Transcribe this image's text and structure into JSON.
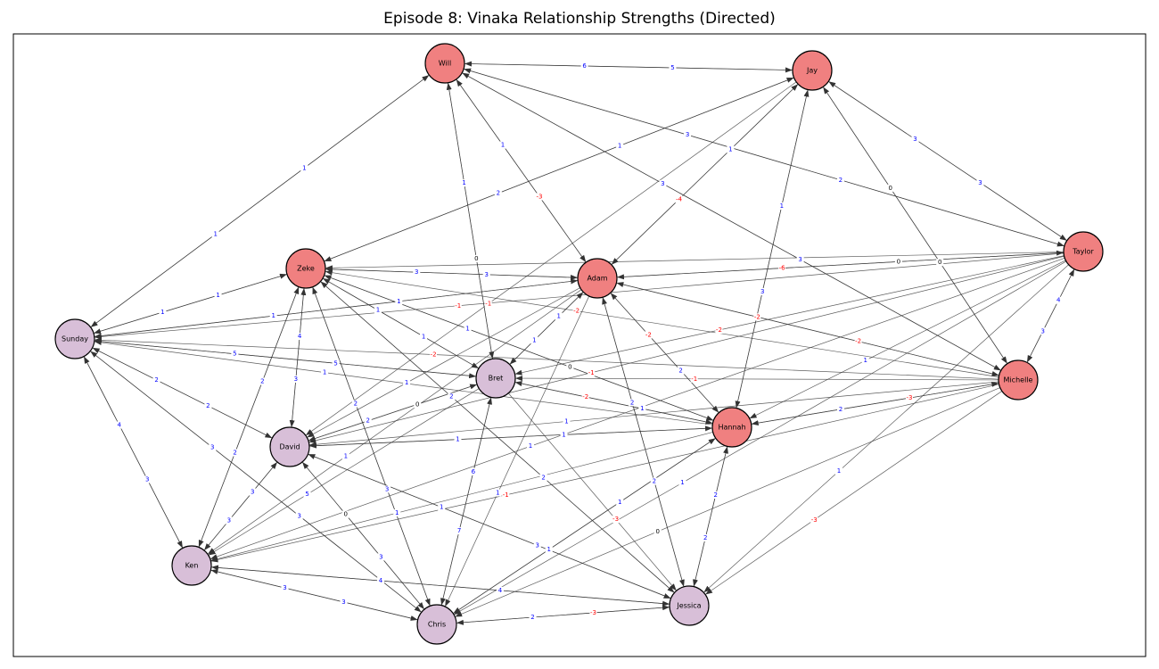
{
  "title": "Episode 8: Vinaka Relationship Strengths (Directed)",
  "colors": {
    "red_node": "#f08080",
    "purple_node": "#d8bfd8",
    "positive_label": "#0000ff",
    "negative_label": "#ff0000",
    "zero_label": "#000000",
    "edge": "#333333"
  },
  "nodes": [
    {
      "id": "Will",
      "label": "Will",
      "group": "red"
    },
    {
      "id": "Jay",
      "label": "Jay",
      "group": "red"
    },
    {
      "id": "Zeke",
      "label": "Zeke",
      "group": "red"
    },
    {
      "id": "Adam",
      "label": "Adam",
      "group": "red"
    },
    {
      "id": "Taylor",
      "label": "Taylor",
      "group": "red"
    },
    {
      "id": "Sunday",
      "label": "Sunday",
      "group": "purple"
    },
    {
      "id": "Bret",
      "label": "Bret",
      "group": "purple"
    },
    {
      "id": "Michelle",
      "label": "Michelle",
      "group": "red"
    },
    {
      "id": "Hannah",
      "label": "Hannah",
      "group": "red"
    },
    {
      "id": "David",
      "label": "David",
      "group": "purple"
    },
    {
      "id": "Ken",
      "label": "Ken",
      "group": "purple"
    },
    {
      "id": "Jessica",
      "label": "Jessica",
      "group": "purple"
    },
    {
      "id": "Chris",
      "label": "Chris",
      "group": "purple"
    }
  ],
  "edges": [
    {
      "source": "Will",
      "target": "Jay",
      "weight": "5"
    },
    {
      "source": "Jay",
      "target": "Will",
      "weight": "6"
    },
    {
      "source": "Will",
      "target": "Sunday",
      "weight": "1"
    },
    {
      "source": "Sunday",
      "target": "Will",
      "weight": "1"
    },
    {
      "source": "Will",
      "target": "Adam",
      "weight": "-3"
    },
    {
      "source": "Adam",
      "target": "Will",
      "weight": "1"
    },
    {
      "source": "Will",
      "target": "Bret",
      "weight": "0"
    },
    {
      "source": "Bret",
      "target": "Will",
      "weight": "1"
    },
    {
      "source": "Will",
      "target": "Taylor",
      "weight": "2"
    },
    {
      "source": "Taylor",
      "target": "Will",
      "weight": "3"
    },
    {
      "source": "Will",
      "target": "Michelle",
      "weight": "3"
    },
    {
      "source": "Michelle",
      "target": "Will",
      "weight": "3"
    },
    {
      "source": "Jay",
      "target": "Taylor",
      "weight": "3"
    },
    {
      "source": "Taylor",
      "target": "Jay",
      "weight": "3"
    },
    {
      "source": "Jay",
      "target": "Zeke",
      "weight": "2"
    },
    {
      "source": "Zeke",
      "target": "Jay",
      "weight": "1"
    },
    {
      "source": "Jay",
      "target": "Adam",
      "weight": "-4"
    },
    {
      "source": "Adam",
      "target": "Jay",
      "weight": "1"
    },
    {
      "source": "Jay",
      "target": "Hannah",
      "weight": "3"
    },
    {
      "source": "Hannah",
      "target": "Jay",
      "weight": "1"
    },
    {
      "source": "Jay",
      "target": "Michelle",
      "weight": "0"
    },
    {
      "source": "Michelle",
      "target": "Jay",
      "weight": "0"
    },
    {
      "source": "Jay",
      "target": "David",
      "weight": "-1"
    },
    {
      "source": "Zeke",
      "target": "Adam",
      "weight": "3"
    },
    {
      "source": "Adam",
      "target": "Zeke",
      "weight": "3"
    },
    {
      "source": "Zeke",
      "target": "Sunday",
      "weight": "1"
    },
    {
      "source": "Sunday",
      "target": "Zeke",
      "weight": "1"
    },
    {
      "source": "Zeke",
      "target": "David",
      "weight": "3"
    },
    {
      "source": "David",
      "target": "Zeke",
      "weight": "4"
    },
    {
      "source": "Zeke",
      "target": "Bret",
      "weight": "1"
    },
    {
      "source": "Bret",
      "target": "Zeke",
      "weight": "1"
    },
    {
      "source": "Zeke",
      "target": "Hannah",
      "weight": "0"
    },
    {
      "source": "Hannah",
      "target": "Zeke",
      "weight": "1"
    },
    {
      "source": "Zeke",
      "target": "Ken",
      "weight": "2"
    },
    {
      "source": "Ken",
      "target": "Zeke",
      "weight": "2"
    },
    {
      "source": "Zeke",
      "target": "Chris",
      "weight": "3"
    },
    {
      "source": "Chris",
      "target": "Zeke",
      "weight": "2"
    },
    {
      "source": "Zeke",
      "target": "Jessica",
      "weight": "2"
    },
    {
      "source": "Taylor",
      "target": "Zeke",
      "weight": "-3"
    },
    {
      "source": "Michelle",
      "target": "Zeke",
      "weight": "-2"
    },
    {
      "source": "Adam",
      "target": "Taylor",
      "weight": "0"
    },
    {
      "source": "Taylor",
      "target": "Adam",
      "weight": "-6"
    },
    {
      "source": "Adam",
      "target": "Sunday",
      "weight": "1"
    },
    {
      "source": "Sunday",
      "target": "Adam",
      "weight": "1"
    },
    {
      "source": "Adam",
      "target": "Bret",
      "weight": "1"
    },
    {
      "source": "Bret",
      "target": "Adam",
      "weight": "1"
    },
    {
      "source": "Adam",
      "target": "Hannah",
      "weight": "2"
    },
    {
      "source": "Hannah",
      "target": "Adam",
      "weight": "-2"
    },
    {
      "source": "Adam",
      "target": "Michelle",
      "weight": "-2"
    },
    {
      "source": "Michelle",
      "target": "Adam",
      "weight": "-2"
    },
    {
      "source": "Adam",
      "target": "David",
      "weight": "1"
    },
    {
      "source": "Adam",
      "target": "Jessica",
      "weight": "2"
    },
    {
      "source": "Adam",
      "target": "Chris",
      "weight": "1"
    },
    {
      "source": "Adam",
      "target": "Ken",
      "weight": "1"
    },
    {
      "source": "Taylor",
      "target": "Michelle",
      "weight": "3"
    },
    {
      "source": "Michelle",
      "target": "Taylor",
      "weight": "4"
    },
    {
      "source": "Taylor",
      "target": "Hannah",
      "weight": "1"
    },
    {
      "source": "Taylor",
      "target": "Sunday",
      "weight": "-1"
    },
    {
      "source": "Taylor",
      "target": "Bret",
      "weight": "-2"
    },
    {
      "source": "Taylor",
      "target": "David",
      "weight": "-1"
    },
    {
      "source": "Taylor",
      "target": "Ken",
      "weight": "1"
    },
    {
      "source": "Taylor",
      "target": "Jessica",
      "weight": "1"
    },
    {
      "source": "Taylor",
      "target": "Chris",
      "weight": "1"
    },
    {
      "source": "Sunday",
      "target": "Bret",
      "weight": "5"
    },
    {
      "source": "Bret",
      "target": "Sunday",
      "weight": "5"
    },
    {
      "source": "Sunday",
      "target": "David",
      "weight": "2"
    },
    {
      "source": "David",
      "target": "Sunday",
      "weight": "2"
    },
    {
      "source": "Sunday",
      "target": "Ken",
      "weight": "3"
    },
    {
      "source": "Ken",
      "target": "Sunday",
      "weight": "4"
    },
    {
      "source": "Sunday",
      "target": "Chris",
      "weight": "3"
    },
    {
      "source": "Chris",
      "target": "Sunday",
      "weight": "3"
    },
    {
      "source": "Michelle",
      "target": "Sunday",
      "weight": "-2"
    },
    {
      "source": "Hannah",
      "target": "Sunday",
      "weight": "1"
    },
    {
      "source": "Bret",
      "target": "Hannah",
      "weight": "1"
    },
    {
      "source": "Hannah",
      "target": "Bret",
      "weight": "-2"
    },
    {
      "source": "Bret",
      "target": "David",
      "weight": "2"
    },
    {
      "source": "David",
      "target": "Bret",
      "weight": "0"
    },
    {
      "source": "Bret",
      "target": "Ken",
      "weight": "5"
    },
    {
      "source": "Bret",
      "target": "Chris",
      "weight": "7"
    },
    {
      "source": "Chris",
      "target": "Bret",
      "weight": "6"
    },
    {
      "source": "Bret",
      "target": "Jessica",
      "weight": "-3"
    },
    {
      "source": "Michelle",
      "target": "Bret",
      "weight": "-1"
    },
    {
      "source": "Michelle",
      "target": "Hannah",
      "weight": "2"
    },
    {
      "source": "Hannah",
      "target": "Michelle",
      "weight": "-3"
    },
    {
      "source": "Michelle",
      "target": "David",
      "weight": "1"
    },
    {
      "source": "Michelle",
      "target": "Ken",
      "weight": "-1"
    },
    {
      "source": "Michelle",
      "target": "Jessica",
      "weight": "-3"
    },
    {
      "source": "Michelle",
      "target": "Chris",
      "weight": "0"
    },
    {
      "source": "Hannah",
      "target": "David",
      "weight": "1"
    },
    {
      "source": "David",
      "target": "Hannah",
      "weight": "1"
    },
    {
      "source": "Hannah",
      "target": "Ken",
      "weight": "1"
    },
    {
      "source": "Hannah",
      "target": "Chris",
      "weight": "1"
    },
    {
      "source": "Chris",
      "target": "Hannah",
      "weight": "1"
    },
    {
      "source": "Hannah",
      "target": "Jessica",
      "weight": "2"
    },
    {
      "source": "Jessica",
      "target": "Hannah",
      "weight": "2"
    },
    {
      "source": "David",
      "target": "Ken",
      "weight": "3"
    },
    {
      "source": "Ken",
      "target": "David",
      "weight": "3"
    },
    {
      "source": "David",
      "target": "Chris",
      "weight": "3"
    },
    {
      "source": "Chris",
      "target": "David",
      "weight": "0"
    },
    {
      "source": "David",
      "target": "Jessica",
      "weight": "3"
    },
    {
      "source": "Jessica",
      "target": "David",
      "weight": "1"
    },
    {
      "source": "Ken",
      "target": "Jessica",
      "weight": "4"
    },
    {
      "source": "Jessica",
      "target": "Ken",
      "weight": "4"
    },
    {
      "source": "Ken",
      "target": "Chris",
      "weight": "3"
    },
    {
      "source": "Chris",
      "target": "Ken",
      "weight": "3"
    },
    {
      "source": "Chris",
      "target": "Jessica",
      "weight": "-3"
    },
    {
      "source": "Jessica",
      "target": "Chris",
      "weight": "2"
    },
    {
      "source": "Jessica",
      "target": "Adam",
      "weight": "2"
    },
    {
      "source": "Jessica",
      "target": "Zeke",
      "weight": "2"
    }
  ]
}
